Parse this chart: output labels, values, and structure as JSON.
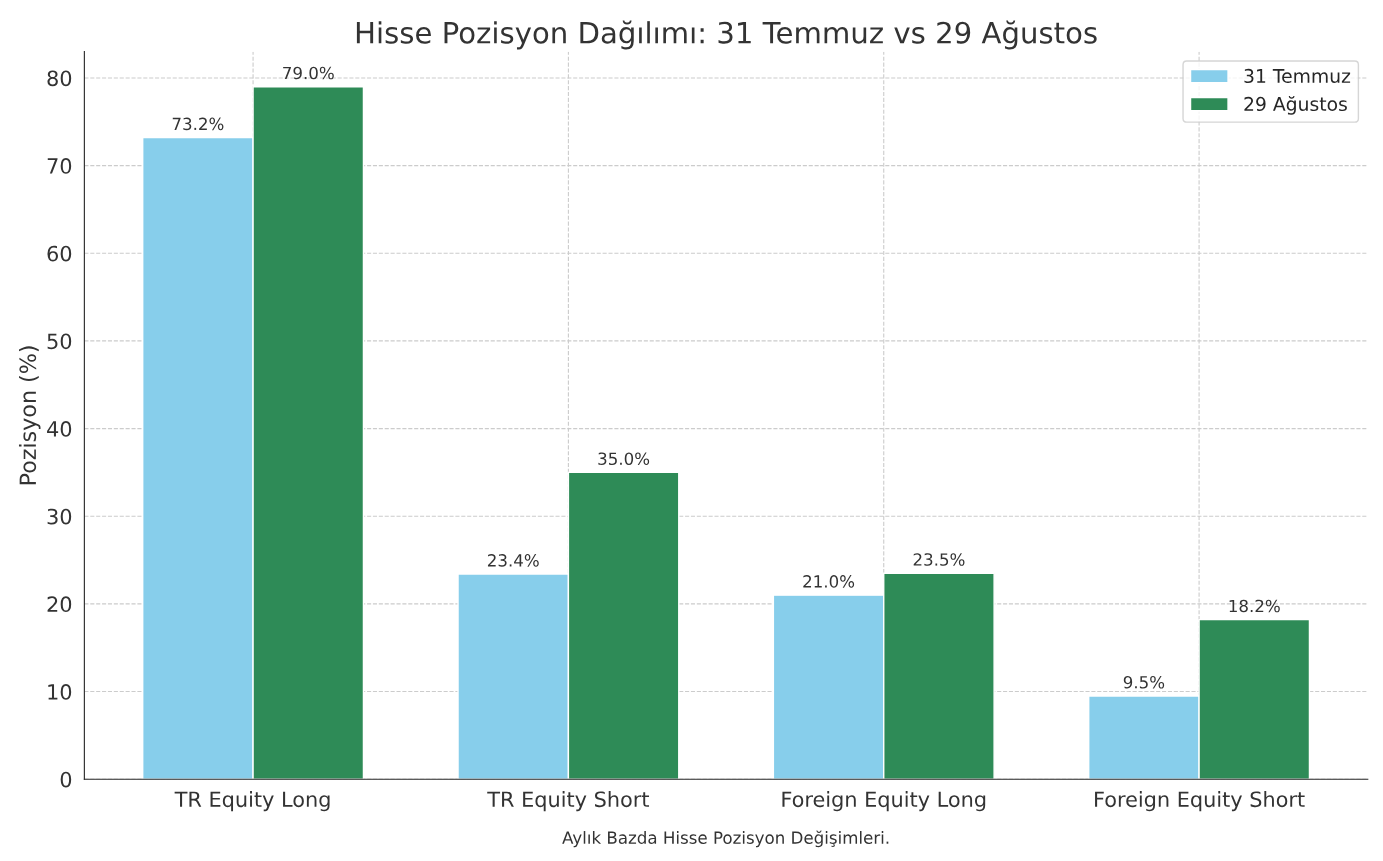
{
  "chart_data": {
    "type": "bar",
    "title": "Hisse Pozisyon Dağılımı: 31 Temmuz vs 29 Ağustos",
    "ylabel": "Pozisyon (%)",
    "xlabel": "Aylık Bazda Hisse Pozisyon Değişimleri.",
    "categories": [
      "TR Equity Long",
      "TR Equity Short",
      "Foreign Equity Long",
      "Foreign Equity Short"
    ],
    "series": [
      {
        "name": "31 Temmuz",
        "color": "#87ceeb",
        "values": [
          73.2,
          23.4,
          21.0,
          9.5
        ],
        "value_labels": [
          "73.2%",
          "23.4%",
          "21.0%",
          "9.5%"
        ]
      },
      {
        "name": "29 Ağustos",
        "color": "#2e8b57",
        "values": [
          79.0,
          35.0,
          23.5,
          18.2
        ],
        "value_labels": [
          "79.0%",
          "35.0%",
          "23.5%",
          "18.2%"
        ]
      }
    ],
    "ylim": [
      0,
      83
    ],
    "yticks": [
      0,
      10,
      20,
      30,
      40,
      50,
      60,
      70,
      80
    ],
    "grid": true,
    "legend": "top right"
  }
}
